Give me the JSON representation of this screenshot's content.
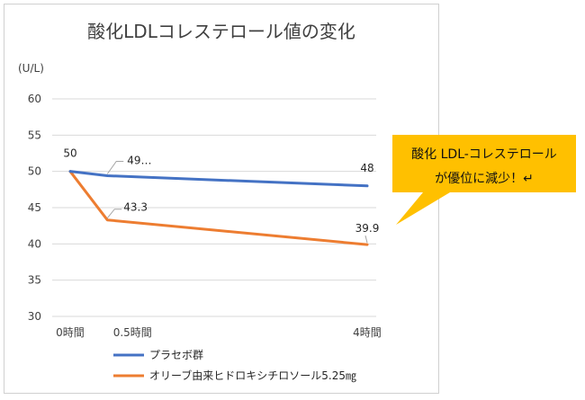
{
  "chart_data": {
    "type": "line",
    "title": "酸化LDLコレステロール値の変化",
    "ylabel": "(U/L)",
    "categories": [
      "0時間",
      "0.5時間",
      "4時間"
    ],
    "x": [
      0,
      0.5,
      4
    ],
    "ylim": [
      30,
      60
    ],
    "yticks": [
      30,
      35,
      40,
      45,
      50,
      55,
      60
    ],
    "grid": true,
    "legend": "bottom",
    "series": [
      {
        "name": "プラセボ群",
        "values": [
          50,
          49.4,
          48
        ],
        "labels": [
          "50",
          "49…",
          "48"
        ],
        "color": "#4472c4"
      },
      {
        "name": "オリーブ由来ヒドロキシチロソール5.25㎎",
        "values": [
          50,
          43.3,
          39.9
        ],
        "labels": [
          "",
          "43.3",
          "39.9"
        ],
        "color": "#ed7d31"
      }
    ],
    "annotation": {
      "line1": "酸化 LDL-コレステロール",
      "line2": "が優位に減少！↵",
      "color": "#ffc000"
    }
  }
}
